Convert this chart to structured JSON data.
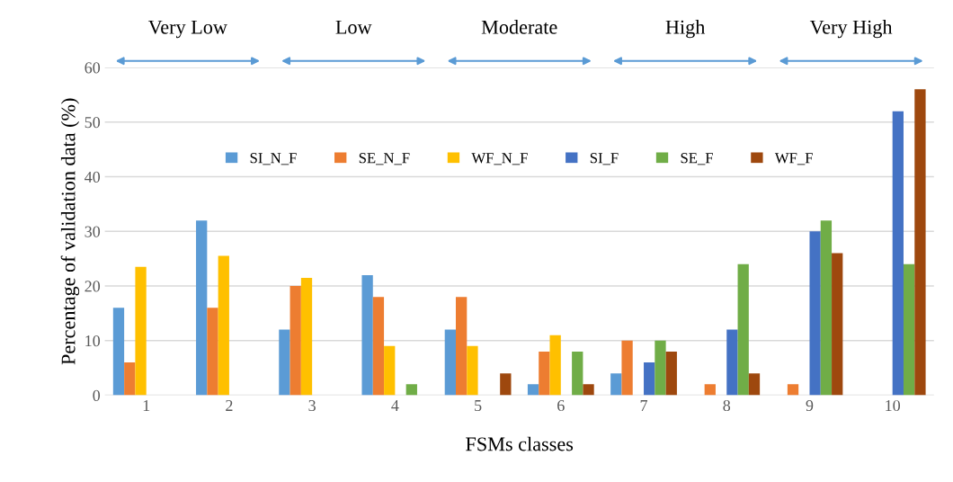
{
  "chart_data": {
    "type": "bar",
    "xlabel": "FSMs classes",
    "ylabel": "Percentage of validation data (%)",
    "categories": [
      "1",
      "2",
      "3",
      "4",
      "5",
      "6",
      "7",
      "8",
      "9",
      "10"
    ],
    "series": [
      {
        "name": "SI_N_F",
        "color": "#5b9bd5",
        "values": [
          16,
          32,
          12,
          22,
          12,
          2,
          4,
          0,
          0,
          0
        ]
      },
      {
        "name": "SE_N_F",
        "color": "#ed7d31",
        "values": [
          6,
          16,
          20,
          18,
          18,
          8,
          10,
          2,
          2,
          0
        ]
      },
      {
        "name": "WF_N_F",
        "color": "#ffc000",
        "values": [
          23.5,
          25.5,
          21.5,
          9,
          9,
          11,
          0,
          0,
          0,
          0
        ]
      },
      {
        "name": "SI_F",
        "color": "#4472c4",
        "values": [
          0,
          0,
          0,
          0,
          0,
          0,
          6,
          12,
          30,
          52
        ]
      },
      {
        "name": "SE_F",
        "color": "#70ad47",
        "values": [
          0,
          0,
          0,
          2,
          0,
          8,
          10,
          24,
          32,
          24
        ]
      },
      {
        "name": "WF_F",
        "color": "#9e480e",
        "values": [
          0,
          0,
          0,
          0,
          4,
          2,
          8,
          4,
          26,
          56
        ]
      }
    ],
    "annotations": [
      "Very Low",
      "Low",
      "Moderate",
      "High",
      "Very High"
    ],
    "ylim": [
      0,
      60
    ],
    "yticks": [
      0,
      10,
      20,
      30,
      40,
      50,
      60
    ],
    "grid": "y",
    "legend": "center"
  }
}
